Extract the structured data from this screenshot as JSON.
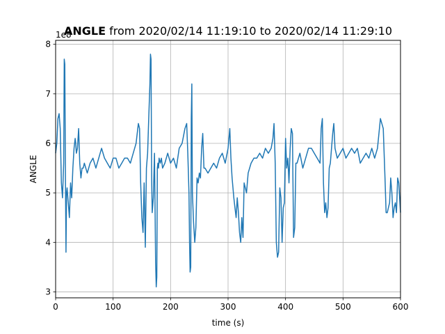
{
  "chart_data": {
    "type": "line",
    "title_bold": "ANGLE",
    "title_rest": " from 2020/02/14 11:19:10 to 2020/02/14 11:29:10",
    "xlabel": "time (s)",
    "ylabel": "ANGLE",
    "offset_label": "1e8",
    "xlim": [
      0,
      600
    ],
    "ylim": [
      2.88,
      8.08
    ],
    "x_ticks": [
      0,
      100,
      200,
      300,
      400,
      500,
      600
    ],
    "y_ticks": [
      3,
      4,
      5,
      6,
      7,
      8
    ],
    "x_tick_labels": [
      "0",
      "100",
      "200",
      "300",
      "400",
      "500",
      "600"
    ],
    "y_tick_labels": [
      "3",
      "4",
      "5",
      "6",
      "7",
      "8"
    ],
    "grid": true,
    "line_color": "#1f77b4",
    "series": [
      {
        "x": [
          0,
          2,
          4,
          6,
          8,
          10,
          12,
          14,
          15,
          16,
          17,
          18,
          19,
          20,
          22,
          24,
          26,
          28,
          30,
          32,
          34,
          35,
          36,
          38,
          40,
          42,
          44,
          46,
          48,
          50,
          55,
          60,
          65,
          70,
          75,
          80,
          85,
          90,
          95,
          100,
          105,
          110,
          115,
          120,
          125,
          130,
          135,
          140,
          144,
          146,
          148,
          150,
          152,
          154,
          156,
          158,
          160,
          162,
          164,
          165,
          166,
          167,
          168,
          170,
          172,
          174,
          175,
          176,
          177,
          178,
          179,
          180,
          182,
          184,
          186,
          190,
          195,
          200,
          205,
          210,
          215,
          220,
          225,
          228,
          230,
          232,
          233,
          234,
          235,
          236,
          237,
          238,
          240,
          242,
          244,
          246,
          248,
          250,
          252,
          254,
          256,
          258,
          260,
          265,
          270,
          275,
          280,
          285,
          290,
          295,
          300,
          303,
          305,
          307,
          310,
          312,
          314,
          316,
          318,
          320,
          322,
          324,
          326,
          328,
          330,
          332,
          335,
          340,
          345,
          350,
          355,
          360,
          365,
          370,
          375,
          378,
          380,
          382,
          384,
          386,
          388,
          390,
          392,
          394,
          396,
          398,
          400,
          402,
          404,
          406,
          408,
          410,
          412,
          414,
          416,
          418,
          420,
          425,
          430,
          435,
          440,
          445,
          450,
          455,
          460,
          462,
          464,
          466,
          468,
          470,
          472,
          474,
          476,
          478,
          480,
          482,
          484,
          486,
          488,
          490,
          495,
          500,
          505,
          510,
          515,
          520,
          525,
          530,
          535,
          540,
          545,
          550,
          555,
          560,
          565,
          570,
          573,
          575,
          577,
          579,
          581,
          583,
          585,
          587,
          589,
          591,
          593,
          595,
          597,
          600
        ],
        "y": [
          5.8,
          6.0,
          6.5,
          6.6,
          6.3,
          5.2,
          4.9,
          5.6,
          7.7,
          7.6,
          5.4,
          3.8,
          5.0,
          5.1,
          4.8,
          4.5,
          5.2,
          4.9,
          5.5,
          5.9,
          6.1,
          6.0,
          5.8,
          5.9,
          6.3,
          5.6,
          5.3,
          5.5,
          5.5,
          5.6,
          5.4,
          5.6,
          5.7,
          5.5,
          5.7,
          5.9,
          5.7,
          5.6,
          5.5,
          5.7,
          5.7,
          5.5,
          5.6,
          5.7,
          5.7,
          5.6,
          5.8,
          6.0,
          6.4,
          6.3,
          5.2,
          4.5,
          4.2,
          5.2,
          3.9,
          5.5,
          5.8,
          6.5,
          7.2,
          7.8,
          7.7,
          5.3,
          4.6,
          4.9,
          5.8,
          3.6,
          3.1,
          3.3,
          5.5,
          5.6,
          5.5,
          5.7,
          5.6,
          5.7,
          5.5,
          5.6,
          5.8,
          5.6,
          5.7,
          5.5,
          5.9,
          6.0,
          6.3,
          6.4,
          5.8,
          5.0,
          4.0,
          3.4,
          3.5,
          6.5,
          7.2,
          5.0,
          4.4,
          4.0,
          4.3,
          5.3,
          5.2,
          5.4,
          5.3,
          5.9,
          6.2,
          5.5,
          5.5,
          5.4,
          5.5,
          5.6,
          5.5,
          5.7,
          5.8,
          5.6,
          5.9,
          6.3,
          5.7,
          5.3,
          4.9,
          4.7,
          4.5,
          4.9,
          4.6,
          4.2,
          4.0,
          4.5,
          4.1,
          5.2,
          5.1,
          5.0,
          5.4,
          5.6,
          5.7,
          5.7,
          5.8,
          5.7,
          5.9,
          5.8,
          5.9,
          6.1,
          6.4,
          5.6,
          4.0,
          3.7,
          3.8,
          5.1,
          4.9,
          4.0,
          4.7,
          4.8,
          6.1,
          5.5,
          5.7,
          5.2,
          5.9,
          6.3,
          6.2,
          4.1,
          4.3,
          5.6,
          5.6,
          5.8,
          5.5,
          5.7,
          5.9,
          5.9,
          5.8,
          5.7,
          5.6,
          6.3,
          6.5,
          5.2,
          4.6,
          4.8,
          4.5,
          4.7,
          5.5,
          5.6,
          5.9,
          6.2,
          6.4,
          5.9,
          5.8,
          5.7,
          5.8,
          5.9,
          5.7,
          5.8,
          5.9,
          5.8,
          5.9,
          5.6,
          5.7,
          5.8,
          5.7,
          5.9,
          5.7,
          5.9,
          6.5,
          6.3,
          5.3,
          4.6,
          4.6,
          4.7,
          4.8,
          5.3,
          5.0,
          4.5,
          4.7,
          4.8,
          4.6,
          5.3,
          5.2,
          4.6
        ]
      }
    ]
  }
}
